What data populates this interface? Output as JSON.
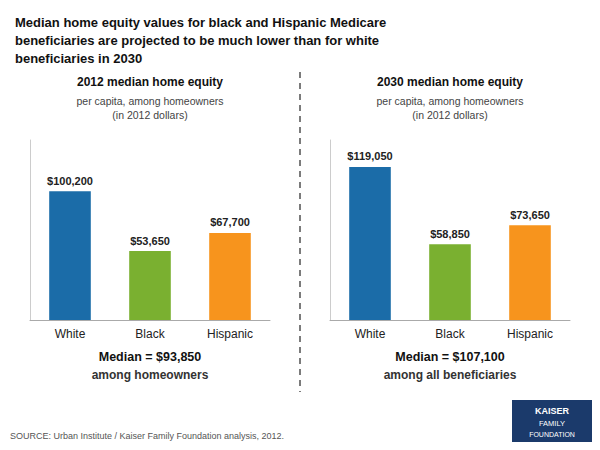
{
  "title": "Median home equity values for black and Hispanic Medicare\nbeneficiaries are projected to be much lower than for white\nbeneficiaries in 2030",
  "annotations": [
    "SOURCE: Urban Institute / Kaiser Family Foundation analysis, 2012.",
    "KAISER",
    "FAMILY",
    "FOUNDATION"
  ],
  "chart_data": [
    {
      "type": "bar",
      "title": "2012 median home equity",
      "subtitle": "per capita, among homeowners\n(in 2012 dollars)",
      "categories": [
        "White",
        "Black",
        "Hispanic"
      ],
      "values": [
        100200,
        53650,
        67700
      ],
      "value_labels": [
        "$100,200",
        "$53,650",
        "$67,700"
      ],
      "data_labels": true,
      "colors": [
        "#1b6ca8",
        "#7ab030",
        "#f7941d"
      ],
      "ylim": [
        0,
        140000
      ],
      "tick_labels": "x",
      "grid": false,
      "annotations": [
        "Median = $93,850",
        "among homeowners"
      ]
    },
    {
      "type": "bar",
      "title": "2030 median home equity",
      "subtitle": "per capita, among homeowners\n(in 2012 dollars)",
      "categories": [
        "White",
        "Black",
        "Hispanic"
      ],
      "values": [
        119050,
        58850,
        73650
      ],
      "value_labels": [
        "$119,050",
        "$58,850",
        "$73,650"
      ],
      "data_labels": true,
      "colors": [
        "#1b6ca8",
        "#7ab030",
        "#f7941d"
      ],
      "ylim": [
        0,
        140000
      ],
      "tick_labels": "x",
      "grid": false,
      "annotations": [
        "Median = $107,100",
        "among all beneficiaries"
      ]
    }
  ]
}
